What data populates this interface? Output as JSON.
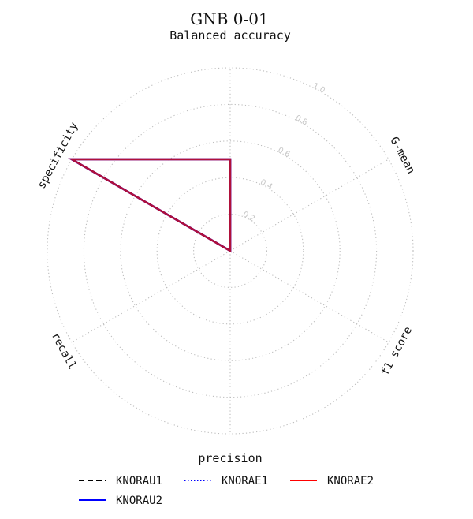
{
  "chart_data": {
    "type": "radar",
    "title": "GNB 0-01",
    "subtitle": "Balanced accuracy",
    "axes": [
      "Balanced accuracy",
      "G-mean",
      "f1 score",
      "precision",
      "recall",
      "specificity"
    ],
    "rlim": [
      0,
      1.0
    ],
    "radial_ticks": [
      0.2,
      0.4,
      0.6,
      0.8,
      1.0
    ],
    "radial_tick_labels": [
      "0.2",
      "0.4",
      "0.6",
      "0.8",
      "1.0"
    ],
    "grid": true,
    "series": [
      {
        "name": "KNORAU1",
        "color": "#000000",
        "style": "dashed",
        "values": [
          0.5,
          0.0,
          0.0,
          0.0,
          0.0,
          1.0
        ]
      },
      {
        "name": "KNORAE1",
        "color": "#0000ff",
        "style": "dotted",
        "values": [
          0.5,
          0.0,
          0.0,
          0.0,
          0.0,
          1.0
        ]
      },
      {
        "name": "KNORAE2",
        "color": "#ff0000",
        "style": "solid",
        "values": [
          0.5,
          0.0,
          0.0,
          0.0,
          0.0,
          1.0
        ]
      },
      {
        "name": "KNORAU2",
        "color": "#0000ff",
        "style": "solid",
        "values": [
          0.5,
          0.0,
          0.0,
          0.0,
          0.0,
          1.0
        ]
      }
    ],
    "legend_position": "bottom"
  }
}
